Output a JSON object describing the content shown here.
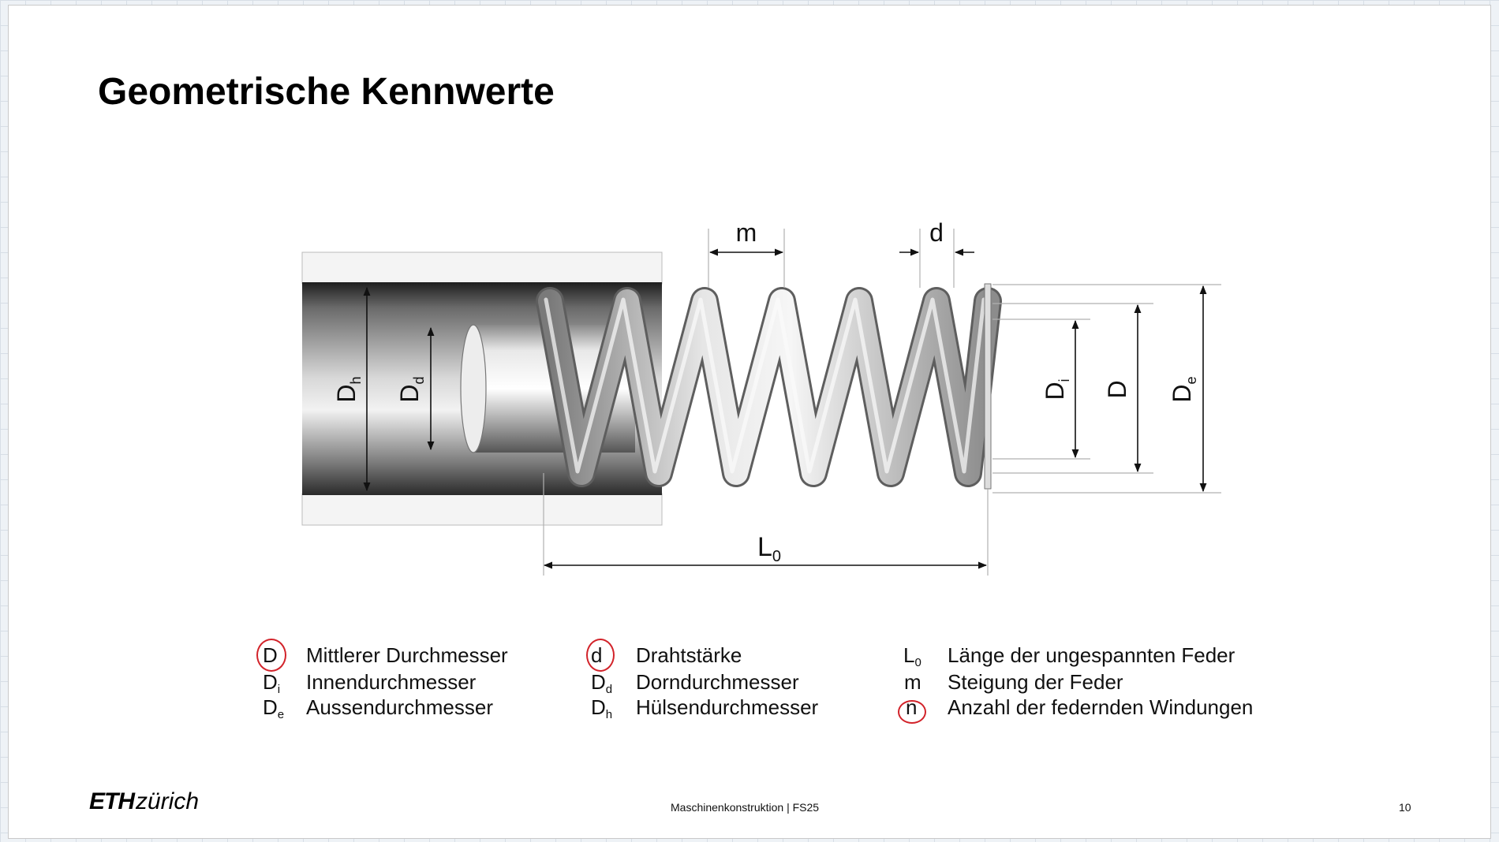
{
  "slide": {
    "title": "Geometrische Kennwerte",
    "footer_center": "Maschinenkonstruktion | FS25",
    "page_number": "10",
    "logo": {
      "eth": "ETH",
      "zurich": "zürich"
    }
  },
  "diagram_labels": {
    "m": "m",
    "d": "d",
    "Dh": {
      "base": "D",
      "sub": "h"
    },
    "Dd": {
      "base": "D",
      "sub": "d"
    },
    "Di": {
      "base": "D",
      "sub": "i"
    },
    "D": "D",
    "De": {
      "base": "D",
      "sub": "e"
    },
    "L0": {
      "base": "L",
      "sub": "0"
    }
  },
  "legend": [
    {
      "symbol": "D",
      "sub": "",
      "text": "Mittlerer Durchmesser",
      "circled": true
    },
    {
      "symbol": "D",
      "sub": "i",
      "text": "Innendurchmesser",
      "circled": false
    },
    {
      "symbol": "D",
      "sub": "e",
      "text": "Aussendurchmesser",
      "circled": false
    },
    {
      "symbol": "d",
      "sub": "",
      "text": "Drahtstärke",
      "circled": true
    },
    {
      "symbol": "D",
      "sub": "d",
      "text": "Dorndurchmesser",
      "circled": false
    },
    {
      "symbol": "D",
      "sub": "h",
      "text": "Hülsendurchmesser",
      "circled": false
    },
    {
      "symbol": "L",
      "sub": "0",
      "text": "Länge der ungespannten Feder",
      "circled": false
    },
    {
      "symbol": "m",
      "sub": "",
      "text": "Steigung der Feder",
      "circled": false
    },
    {
      "symbol": "n",
      "sub": "",
      "text": "Anzahl der federnden Windungen",
      "circled": true
    }
  ],
  "colors": {
    "annotation": "#d2232a",
    "spring": "#b8b8b8"
  }
}
